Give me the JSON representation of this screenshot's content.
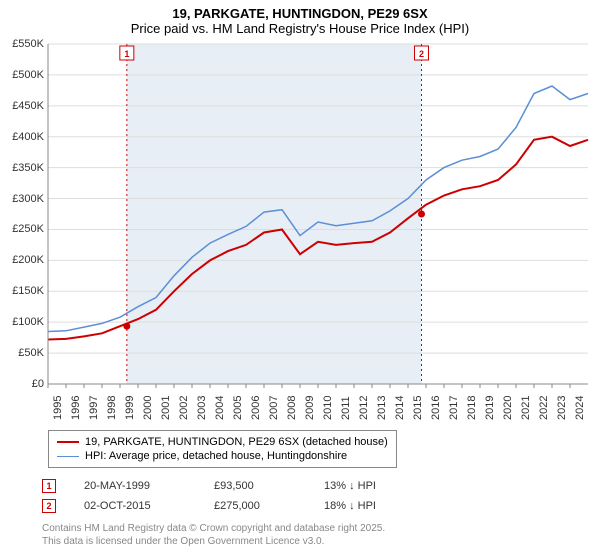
{
  "title": {
    "line1": "19, PARKGATE, HUNTINGDON, PE29 6SX",
    "line2": "Price paid vs. HM Land Registry's House Price Index (HPI)"
  },
  "chart": {
    "type": "line",
    "background_color": "#ffffff",
    "grid_color": "#dddddd",
    "axis_color": "#888888",
    "shaded_band_color": "#e8eef5",
    "y_axis": {
      "min": 0,
      "max": 550000,
      "tick_step": 50000,
      "labels": [
        "£0",
        "£50K",
        "£100K",
        "£150K",
        "£200K",
        "£250K",
        "£300K",
        "£350K",
        "£400K",
        "£450K",
        "£500K",
        "£550K"
      ],
      "label_fontsize": 11
    },
    "x_axis": {
      "min": 1995,
      "max": 2025,
      "labels": [
        "1995",
        "1996",
        "1997",
        "1998",
        "1999",
        "2000",
        "2001",
        "2002",
        "2003",
        "2004",
        "2005",
        "2006",
        "2007",
        "2008",
        "2009",
        "2010",
        "2011",
        "2012",
        "2013",
        "2014",
        "2015",
        "2016",
        "2017",
        "2018",
        "2019",
        "2020",
        "2021",
        "2022",
        "2023",
        "2024"
      ],
      "label_fontsize": 11,
      "label_rotation": -90
    },
    "series": [
      {
        "id": "price_paid",
        "label": "19, PARKGATE, HUNTINGDON, PE29 6SX (detached house)",
        "color": "#cc0000",
        "line_width": 2,
        "points": [
          [
            1995,
            72000
          ],
          [
            1996,
            73000
          ],
          [
            1997,
            77000
          ],
          [
            1998,
            82000
          ],
          [
            1999,
            93500
          ],
          [
            2000,
            105000
          ],
          [
            2001,
            120000
          ],
          [
            2002,
            150000
          ],
          [
            2003,
            178000
          ],
          [
            2004,
            200000
          ],
          [
            2005,
            215000
          ],
          [
            2006,
            225000
          ],
          [
            2007,
            245000
          ],
          [
            2008,
            250000
          ],
          [
            2009,
            210000
          ],
          [
            2010,
            230000
          ],
          [
            2011,
            225000
          ],
          [
            2012,
            228000
          ],
          [
            2013,
            230000
          ],
          [
            2014,
            245000
          ],
          [
            2015,
            268000
          ],
          [
            2016,
            290000
          ],
          [
            2017,
            305000
          ],
          [
            2018,
            315000
          ],
          [
            2019,
            320000
          ],
          [
            2020,
            330000
          ],
          [
            2021,
            355000
          ],
          [
            2022,
            395000
          ],
          [
            2023,
            400000
          ],
          [
            2024,
            385000
          ],
          [
            2025,
            395000
          ]
        ]
      },
      {
        "id": "hpi",
        "label": "HPI: Average price, detached house, Huntingdonshire",
        "color": "#5b8fd6",
        "line_width": 1.5,
        "points": [
          [
            1995,
            85000
          ],
          [
            1996,
            86000
          ],
          [
            1997,
            92000
          ],
          [
            1998,
            98000
          ],
          [
            1999,
            108000
          ],
          [
            2000,
            125000
          ],
          [
            2001,
            140000
          ],
          [
            2002,
            175000
          ],
          [
            2003,
            205000
          ],
          [
            2004,
            228000
          ],
          [
            2005,
            242000
          ],
          [
            2006,
            255000
          ],
          [
            2007,
            278000
          ],
          [
            2008,
            282000
          ],
          [
            2009,
            240000
          ],
          [
            2010,
            262000
          ],
          [
            2011,
            256000
          ],
          [
            2012,
            260000
          ],
          [
            2013,
            264000
          ],
          [
            2014,
            280000
          ],
          [
            2015,
            300000
          ],
          [
            2016,
            330000
          ],
          [
            2017,
            350000
          ],
          [
            2018,
            362000
          ],
          [
            2019,
            368000
          ],
          [
            2020,
            380000
          ],
          [
            2021,
            415000
          ],
          [
            2022,
            470000
          ],
          [
            2023,
            482000
          ],
          [
            2024,
            460000
          ],
          [
            2025,
            470000
          ]
        ]
      }
    ],
    "markers": [
      {
        "n": "1",
        "date_label": "20-MAY-1999",
        "x": 1999.38,
        "price_y": 93500,
        "price_label": "£93,500",
        "pct_label": "13% ↓ HPI",
        "border_color": "#cc0000",
        "line_color": "#cc0000"
      },
      {
        "n": "2",
        "date_label": "02-OCT-2015",
        "x": 2015.75,
        "price_y": 275000,
        "price_label": "£275,000",
        "pct_label": "18% ↓ HPI",
        "border_color": "#cc0000",
        "line_color": "#cc0000"
      }
    ],
    "shaded_band": {
      "x_start": 1999.38,
      "x_end": 2015.75
    }
  },
  "legend": {
    "border_color": "#888888",
    "fontsize": 11,
    "items": [
      {
        "label": "19, PARKGATE, HUNTINGDON, PE29 6SX (detached house)",
        "color": "#cc0000",
        "width": 2
      },
      {
        "label": "HPI: Average price, detached house, Huntingdonshire",
        "color": "#5b8fd6",
        "width": 1.5
      }
    ]
  },
  "attribution": {
    "line1": "Contains HM Land Registry data © Crown copyright and database right 2025.",
    "line2": "This data is licensed under the Open Government Licence v3.0.",
    "color": "#888888"
  }
}
